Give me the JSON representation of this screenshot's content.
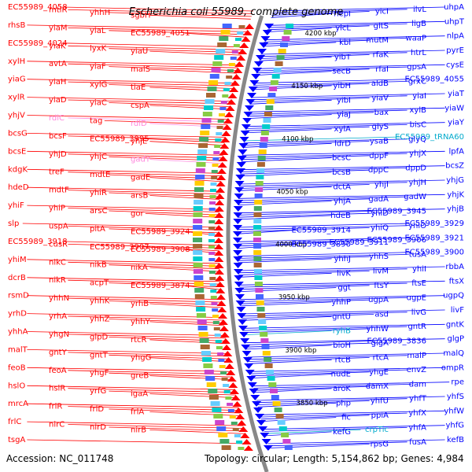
{
  "title": "Escherichia coli 55989, complete genome",
  "accession": "Accession: NC_011748",
  "summary": "Topology: circular; Length: 5,154,862 bp; Genes: 4,984",
  "kbp_marks": [
    "4200 kbp",
    "4150 kbp",
    "4100 kbp",
    "4050 kbp",
    "4000 kbp",
    "3950 kbp",
    "3900 kbp",
    "3850 kbp"
  ],
  "colors": {
    "forward": "#ff0000",
    "reverse": "#0000ff",
    "rna_forward": "#ff88dd",
    "rna_reverse": "#00aacc",
    "backbone": "#888888"
  },
  "left_labels": [
    {
      "text": "EC55989_4058",
      "kind": "gene"
    },
    {
      "text": "mtlR",
      "kind": "gene"
    },
    {
      "text": "yhhH",
      "kind": "gene"
    },
    {
      "text": "sgbH",
      "kind": "gene"
    },
    {
      "text": "rhsB",
      "kind": "gene"
    },
    {
      "text": "yiaM",
      "kind": "gene"
    },
    {
      "text": "yiaL",
      "kind": "gene"
    },
    {
      "text": "EC55989_4051",
      "kind": "gene"
    },
    {
      "text": "EC55989_4024",
      "kind": "gene"
    },
    {
      "text": "yiaK",
      "kind": "gene"
    },
    {
      "text": "lyxK",
      "kind": "gene"
    },
    {
      "text": "yiaU",
      "kind": "gene"
    },
    {
      "text": "xylH",
      "kind": "gene"
    },
    {
      "text": "avtA",
      "kind": "gene"
    },
    {
      "text": "yiaF",
      "kind": "gene"
    },
    {
      "text": "malS",
      "kind": "gene"
    },
    {
      "text": "yiaG",
      "kind": "gene"
    },
    {
      "text": "yiaH",
      "kind": "gene"
    },
    {
      "text": "xylG",
      "kind": "gene"
    },
    {
      "text": "tiaE",
      "kind": "gene"
    },
    {
      "text": "xylR",
      "kind": "gene"
    },
    {
      "text": "yiaD",
      "kind": "gene"
    },
    {
      "text": "yiaC",
      "kind": "gene"
    },
    {
      "text": "cspA",
      "kind": "gene"
    },
    {
      "text": "yhjV",
      "kind": "gene"
    },
    {
      "text": "rdlC",
      "kind": "rna"
    },
    {
      "text": "tag",
      "kind": "gene"
    },
    {
      "text": "rdlD",
      "kind": "rna"
    },
    {
      "text": "bcsG",
      "kind": "gene"
    },
    {
      "text": "bcsF",
      "kind": "gene"
    },
    {
      "text": "EC55989_3995",
      "kind": "gene"
    },
    {
      "text": "yhjE",
      "kind": "gene"
    },
    {
      "text": "bcsE",
      "kind": "gene"
    },
    {
      "text": "yhjD",
      "kind": "gene"
    },
    {
      "text": "yhjC",
      "kind": "gene"
    },
    {
      "text": "gadY",
      "kind": "rna"
    },
    {
      "text": "kdgK",
      "kind": "gene"
    },
    {
      "text": "treF",
      "kind": "gene"
    },
    {
      "text": "mdtE",
      "kind": "gene"
    },
    {
      "text": "gadE",
      "kind": "gene"
    },
    {
      "text": "hdeD",
      "kind": "gene"
    },
    {
      "text": "mdtF",
      "kind": "gene"
    },
    {
      "text": "yhiR",
      "kind": "gene"
    },
    {
      "text": "arsB",
      "kind": "gene"
    },
    {
      "text": "yhiF",
      "kind": "gene"
    },
    {
      "text": "yhiP",
      "kind": "gene"
    },
    {
      "text": "arsC",
      "kind": "gene"
    },
    {
      "text": "gor",
      "kind": "gene"
    },
    {
      "text": "slp",
      "kind": "gene"
    },
    {
      "text": "uspA",
      "kind": "gene"
    },
    {
      "text": "pitA",
      "kind": "gene"
    },
    {
      "text": "EC55989_3924",
      "kind": "gene"
    },
    {
      "text": "EC55989_3918",
      "kind": "gene"
    },
    {
      "text": "cusR",
      "kind": "gene"
    },
    {
      "text": "EC55989_3907",
      "kind": "gene"
    },
    {
      "text": "EC55989_3908",
      "kind": "gene"
    },
    {
      "text": "yhiM",
      "kind": "gene"
    },
    {
      "text": "nikC",
      "kind": "gene"
    },
    {
      "text": "nikB",
      "kind": "gene"
    },
    {
      "text": "nikA",
      "kind": "gene"
    },
    {
      "text": "dcrB",
      "kind": "gene"
    },
    {
      "text": "nikR",
      "kind": "gene"
    },
    {
      "text": "acpT",
      "kind": "gene"
    },
    {
      "text": "EC55989_3874",
      "kind": "gene"
    },
    {
      "text": "rsmD",
      "kind": "gene"
    },
    {
      "text": "yhhN",
      "kind": "gene"
    },
    {
      "text": "yhhK",
      "kind": "gene"
    },
    {
      "text": "yrhB",
      "kind": "gene"
    },
    {
      "text": "yrhD",
      "kind": "gene"
    },
    {
      "text": "yrhA",
      "kind": "gene"
    },
    {
      "text": "yhhZ",
      "kind": "gene"
    },
    {
      "text": "yhhY",
      "kind": "gene"
    },
    {
      "text": "yhhA",
      "kind": "gene"
    },
    {
      "text": "yhgN",
      "kind": "gene"
    },
    {
      "text": "glpD",
      "kind": "gene"
    },
    {
      "text": "rtcR",
      "kind": "gene"
    },
    {
      "text": "malT",
      "kind": "gene"
    },
    {
      "text": "gntY",
      "kind": "gene"
    },
    {
      "text": "gntT",
      "kind": "gene"
    },
    {
      "text": "yhgG",
      "kind": "gene"
    },
    {
      "text": "feoB",
      "kind": "gene"
    },
    {
      "text": "feoA",
      "kind": "gene"
    },
    {
      "text": "yhgF",
      "kind": "gene"
    },
    {
      "text": "greB",
      "kind": "gene"
    },
    {
      "text": "hslO",
      "kind": "gene"
    },
    {
      "text": "hslR",
      "kind": "gene"
    },
    {
      "text": "yrfG",
      "kind": "gene"
    },
    {
      "text": "igaA",
      "kind": "gene"
    },
    {
      "text": "mrcA",
      "kind": "gene"
    },
    {
      "text": "frlR",
      "kind": "gene"
    },
    {
      "text": "frlD",
      "kind": "gene"
    },
    {
      "text": "frlA",
      "kind": "gene"
    },
    {
      "text": "frlC",
      "kind": "gene"
    },
    {
      "text": "nirC",
      "kind": "gene"
    },
    {
      "text": "nirD",
      "kind": "gene"
    },
    {
      "text": "nirB",
      "kind": "gene"
    },
    {
      "text": "tsgA",
      "kind": "gene"
    }
  ],
  "right_labels": [
    {
      "text": "uhpA",
      "kind": "gene"
    },
    {
      "text": "ilvL",
      "kind": "gene"
    },
    {
      "text": "yicI",
      "kind": "gene"
    },
    {
      "text": "nepI",
      "kind": "gene"
    },
    {
      "text": "uhpT",
      "kind": "gene"
    },
    {
      "text": "ligB",
      "kind": "gene"
    },
    {
      "text": "gltS",
      "kind": "gene"
    },
    {
      "text": "yicL",
      "kind": "gene"
    },
    {
      "text": "nlpA",
      "kind": "gene"
    },
    {
      "text": "waaP",
      "kind": "gene"
    },
    {
      "text": "mutM",
      "kind": "gene"
    },
    {
      "text": "kbl",
      "kind": "gene"
    },
    {
      "text": "pyrE",
      "kind": "gene"
    },
    {
      "text": "htrL",
      "kind": "gene"
    },
    {
      "text": "rfaK",
      "kind": "gene"
    },
    {
      "text": "yibT",
      "kind": "gene"
    },
    {
      "text": "cysE",
      "kind": "gene"
    },
    {
      "text": "gpsA",
      "kind": "gene"
    },
    {
      "text": "rfaI",
      "kind": "gene"
    },
    {
      "text": "secB",
      "kind": "gene"
    },
    {
      "text": "EC55989_4055",
      "kind": "gene"
    },
    {
      "text": "grxC",
      "kind": "gene"
    },
    {
      "text": "aldB",
      "kind": "gene"
    },
    {
      "text": "yibH",
      "kind": "gene"
    },
    {
      "text": "yiaT",
      "kind": "gene"
    },
    {
      "text": "yiaI",
      "kind": "gene"
    },
    {
      "text": "yiaV",
      "kind": "gene"
    },
    {
      "text": "yibI",
      "kind": "gene"
    },
    {
      "text": "yiaW",
      "kind": "gene"
    },
    {
      "text": "xylB",
      "kind": "gene"
    },
    {
      "text": "bax",
      "kind": "gene"
    },
    {
      "text": "yiaJ",
      "kind": "gene"
    },
    {
      "text": "yiaY",
      "kind": "gene"
    },
    {
      "text": "bisC",
      "kind": "gene"
    },
    {
      "text": "glyS",
      "kind": "gene"
    },
    {
      "text": "xylA",
      "kind": "gene"
    },
    {
      "text": "EC55989_tRNA60",
      "kind": "rna"
    },
    {
      "text": "glyQ",
      "kind": "gene"
    },
    {
      "text": "ysaB",
      "kind": "gene"
    },
    {
      "text": "ldrD",
      "kind": "gene"
    },
    {
      "text": "lpfA",
      "kind": "gene"
    },
    {
      "text": "yhjX",
      "kind": "gene"
    },
    {
      "text": "dppF",
      "kind": "gene"
    },
    {
      "text": "bcsC",
      "kind": "gene"
    },
    {
      "text": "bcsZ",
      "kind": "gene"
    },
    {
      "text": "dppD",
      "kind": "gene"
    },
    {
      "text": "dppC",
      "kind": "gene"
    },
    {
      "text": "bcsB",
      "kind": "gene"
    },
    {
      "text": "yhjG",
      "kind": "gene"
    },
    {
      "text": "yhjH",
      "kind": "gene"
    },
    {
      "text": "yhjI",
      "kind": "gene"
    },
    {
      "text": "dctA",
      "kind": "gene"
    },
    {
      "text": "yhjK",
      "kind": "gene"
    },
    {
      "text": "gadW",
      "kind": "gene"
    },
    {
      "text": "gadA",
      "kind": "gene"
    },
    {
      "text": "yhjA",
      "kind": "gene"
    },
    {
      "text": "yhjB",
      "kind": "gene"
    },
    {
      "text": "EC55989_3945",
      "kind": "gene"
    },
    {
      "text": "yhiD",
      "kind": "gene"
    },
    {
      "text": "hdeB",
      "kind": "gene"
    },
    {
      "text": "EC55989_3929",
      "kind": "gene"
    },
    {
      "text": "yhiO",
      "kind": "gene"
    },
    {
      "text": "yhiQ",
      "kind": "gene"
    },
    {
      "text": "EC55989_3914",
      "kind": "gene"
    },
    {
      "text": "EC55989_3921",
      "kind": "gene"
    },
    {
      "text": "EC55989_3906",
      "kind": "gene"
    },
    {
      "text": "EC55989_3911",
      "kind": "gene"
    },
    {
      "text": "EC55989_3890",
      "kind": "gene"
    },
    {
      "text": "EC55989_3900",
      "kind": "gene"
    },
    {
      "text": "tusA",
      "kind": "gene"
    },
    {
      "text": "yhhS",
      "kind": "gene"
    },
    {
      "text": "yhhJ",
      "kind": "gene"
    },
    {
      "text": "rbbA",
      "kind": "gene"
    },
    {
      "text": "yhiI",
      "kind": "gene"
    },
    {
      "text": "livM",
      "kind": "gene"
    },
    {
      "text": "livK",
      "kind": "gene"
    },
    {
      "text": "ftsX",
      "kind": "gene"
    },
    {
      "text": "ftsE",
      "kind": "gene"
    },
    {
      "text": "ftsY",
      "kind": "gene"
    },
    {
      "text": "ggt",
      "kind": "gene"
    },
    {
      "text": "ugpQ",
      "kind": "gene"
    },
    {
      "text": "ugpE",
      "kind": "gene"
    },
    {
      "text": "ugpA",
      "kind": "gene"
    },
    {
      "text": "yhhP",
      "kind": "gene"
    },
    {
      "text": "livF",
      "kind": "gene"
    },
    {
      "text": "livG",
      "kind": "gene"
    },
    {
      "text": "asd",
      "kind": "gene"
    },
    {
      "text": "gntU",
      "kind": "gene"
    },
    {
      "text": "gntK",
      "kind": "gene"
    },
    {
      "text": "gntR",
      "kind": "gene"
    },
    {
      "text": "yhhW",
      "kind": "gene"
    },
    {
      "text": "ryhB",
      "kind": "rna"
    },
    {
      "text": "glgP",
      "kind": "gene"
    },
    {
      "text": "EC55989_3836",
      "kind": "gene"
    },
    {
      "text": "glgA",
      "kind": "gene"
    },
    {
      "text": "bioH",
      "kind": "gene"
    },
    {
      "text": "malQ",
      "kind": "gene"
    },
    {
      "text": "malP",
      "kind": "gene"
    },
    {
      "text": "rtcA",
      "kind": "gene"
    },
    {
      "text": "rtcB",
      "kind": "gene"
    },
    {
      "text": "ompR",
      "kind": "gene"
    },
    {
      "text": "envZ",
      "kind": "gene"
    },
    {
      "text": "yhgE",
      "kind": "gene"
    },
    {
      "text": "nudE",
      "kind": "gene"
    },
    {
      "text": "rpe",
      "kind": "gene"
    },
    {
      "text": "dam",
      "kind": "gene"
    },
    {
      "text": "damX",
      "kind": "gene"
    },
    {
      "text": "aroK",
      "kind": "gene"
    },
    {
      "text": "yhfS",
      "kind": "gene"
    },
    {
      "text": "yhfT",
      "kind": "gene"
    },
    {
      "text": "yhfU",
      "kind": "gene"
    },
    {
      "text": "php",
      "kind": "gene"
    },
    {
      "text": "yhfW",
      "kind": "gene"
    },
    {
      "text": "yhfX",
      "kind": "gene"
    },
    {
      "text": "ppiA",
      "kind": "gene"
    },
    {
      "text": "fic",
      "kind": "gene"
    },
    {
      "text": "yhfG",
      "kind": "gene"
    },
    {
      "text": "yhfA",
      "kind": "gene"
    },
    {
      "text": "crpTic",
      "kind": "rna"
    },
    {
      "text": "kefG",
      "kind": "gene"
    },
    {
      "text": "kefB",
      "kind": "gene"
    },
    {
      "text": "fusA",
      "kind": "gene"
    },
    {
      "text": "rpsG",
      "kind": "gene"
    }
  ]
}
